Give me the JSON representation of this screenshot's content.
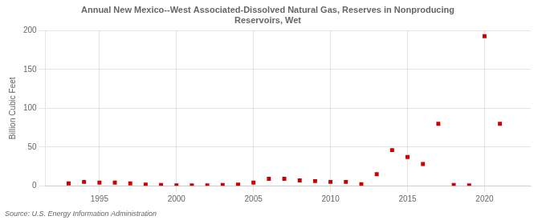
{
  "chart_data": {
    "type": "scatter",
    "title": "Annual New Mexico--West Associated-Dissolved Natural Gas, Reserves in Nonproducing\nReservoirs, Wet",
    "ylabel": "Billion Cubic Feet",
    "source": "Source: U.S. Energy Information Administration",
    "x": [
      1993,
      1994,
      1995,
      1996,
      1997,
      1998,
      1999,
      2000,
      2001,
      2002,
      2003,
      2004,
      2005,
      2006,
      2007,
      2008,
      2009,
      2010,
      2011,
      2012,
      2013,
      2014,
      2015,
      2016,
      2017,
      2018,
      2019,
      2020,
      2021
    ],
    "values": [
      3,
      5,
      4,
      4,
      3,
      1.5,
      1,
      0.5,
      0.5,
      0.5,
      1,
      1.5,
      4,
      9,
      9,
      7,
      6,
      5,
      5,
      2,
      15,
      46,
      37,
      28,
      80,
      1,
      0.5,
      193,
      80
    ],
    "color": "#cc0000",
    "marker": "square",
    "xlim": [
      1991.5,
      2023
    ],
    "xticks": [
      1995,
      2000,
      2005,
      2010,
      2015,
      2020
    ],
    "ylim": [
      0,
      200
    ],
    "yticks": [
      0,
      50,
      100,
      150,
      200
    ],
    "grid": true
  }
}
